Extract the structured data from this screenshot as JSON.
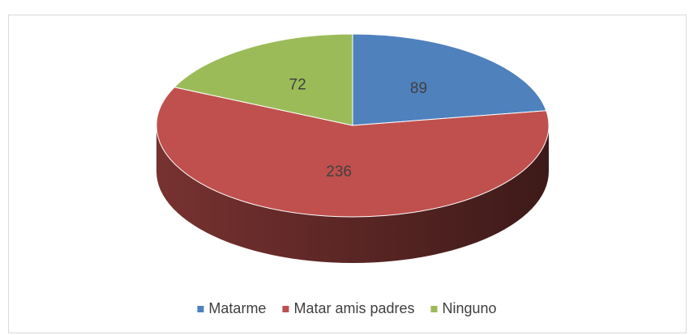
{
  "chart_data": {
    "type": "pie",
    "categories": [
      "Matarme",
      "Matar amis padres",
      "Ninguno"
    ],
    "values": [
      89,
      236,
      72
    ],
    "colors": [
      "#4f81bd",
      "#c0504d",
      "#9bbb59"
    ],
    "legend": "bottom"
  }
}
